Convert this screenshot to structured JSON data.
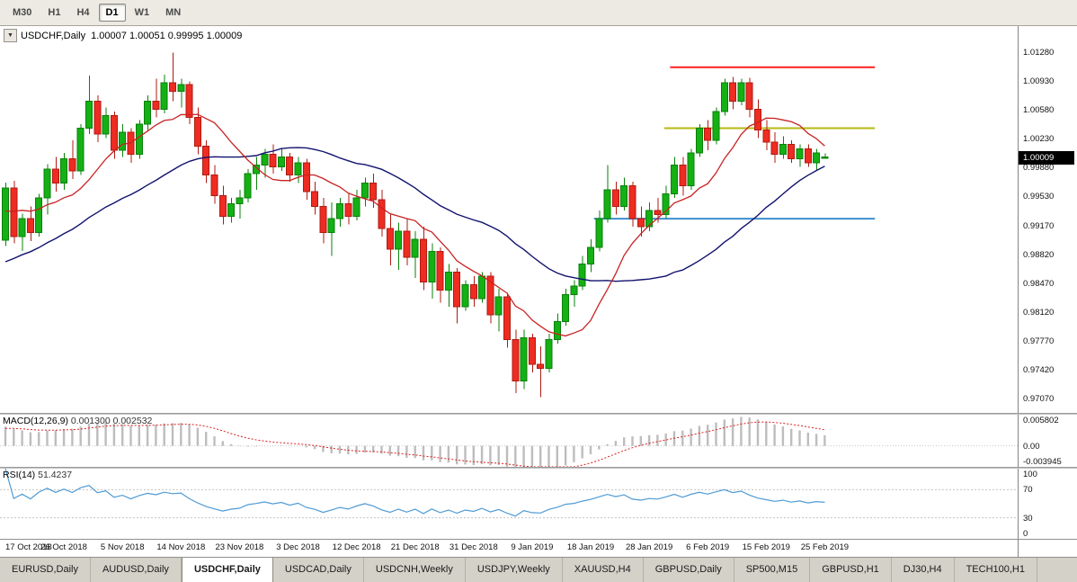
{
  "toolbar": {
    "timeframes": [
      {
        "label": "M30",
        "active": false
      },
      {
        "label": "H1",
        "active": false
      },
      {
        "label": "H4",
        "active": false
      },
      {
        "label": "D1",
        "active": true
      },
      {
        "label": "W1",
        "active": false
      },
      {
        "label": "MN",
        "active": false
      }
    ]
  },
  "chart_title": {
    "symbol": "USDCHF,Daily",
    "ohlc": "1.00007 1.00051 0.99995 1.00009"
  },
  "chart_data": {
    "type": "candlestick",
    "symbol": "USDCHF",
    "timeframe": "Daily",
    "title": "USDCHF,Daily",
    "ohlc_current": {
      "open": "1.00007",
      "high": "1.00051",
      "low": "0.99995",
      "close": "1.00009"
    },
    "current_price": "1.00009",
    "price_range": {
      "max": 1.016,
      "min": 0.969
    },
    "price_axis_labels": [
      "1.01280",
      "1.00930",
      "1.00580",
      "1.00230",
      "0.99880",
      "0.99530",
      "0.99170",
      "0.98820",
      "0.98470",
      "0.98120",
      "0.97770",
      "0.97420",
      "0.97070"
    ],
    "x_labels": [
      "17 Oct 2018",
      "26 Oct 2018",
      "5 Nov 2018",
      "14 Nov 2018",
      "23 Nov 2018",
      "3 Dec 2018",
      "12 Dec 2018",
      "21 Dec 2018",
      "31 Dec 2018",
      "9 Jan 2019",
      "18 Jan 2019",
      "28 Jan 2019",
      "6 Feb 2019",
      "15 Feb 2019",
      "25 Feb 2019"
    ],
    "colors": {
      "bull": "#14b014",
      "bull_border": "#0a800a",
      "bear": "#ee2c21",
      "bear_border": "#b01a12",
      "background": "#ffffff"
    },
    "candles": [
      [
        0.99,
        0.997,
        0.9893,
        0.9963
      ],
      [
        0.9963,
        0.9972,
        0.9896,
        0.9904
      ],
      [
        0.9904,
        0.9932,
        0.9887,
        0.9926
      ],
      [
        0.9926,
        0.9941,
        0.9899,
        0.9909
      ],
      [
        0.9909,
        0.9956,
        0.9904,
        0.9951
      ],
      [
        0.9951,
        0.9992,
        0.9931,
        0.9986
      ],
      [
        0.9986,
        1.0001,
        0.9959,
        0.9969
      ],
      [
        0.9969,
        1.0006,
        0.9961,
        0.9999
      ],
      [
        0.9999,
        1.0021,
        0.9974,
        0.9984
      ],
      [
        0.9984,
        1.0041,
        0.9979,
        1.0036
      ],
      [
        1.0036,
        1.01,
        1.0029,
        1.0069
      ],
      [
        1.0069,
        1.0076,
        1.0019,
        1.0029
      ],
      [
        1.0029,
        1.0061,
        1.0024,
        1.0051
      ],
      [
        1.0051,
        1.0056,
        0.9999,
        1.0009
      ],
      [
        1.0009,
        1.0041,
        1.0001,
        1.0031
      ],
      [
        1.0031,
        1.0036,
        0.9994,
        1.0004
      ],
      [
        1.0004,
        1.0046,
        0.9999,
        1.0041
      ],
      [
        1.0041,
        1.0076,
        1.0034,
        1.0069
      ],
      [
        1.0069,
        1.0096,
        1.0049,
        1.0059
      ],
      [
        1.0059,
        1.0101,
        1.0054,
        1.0091
      ],
      [
        1.0091,
        1.0128,
        1.0069,
        1.0081
      ],
      [
        1.0081,
        1.0096,
        1.0061,
        1.0089
      ],
      [
        1.0089,
        1.0093,
        1.0041,
        1.0049
      ],
      [
        1.0049,
        1.0061,
        1.0004,
        1.0014
      ],
      [
        1.0014,
        1.0021,
        0.9969,
        0.9979
      ],
      [
        0.9979,
        0.9991,
        0.9944,
        0.9954
      ],
      [
        0.9954,
        0.9966,
        0.9919,
        0.9929
      ],
      [
        0.9929,
        0.9951,
        0.9921,
        0.9944
      ],
      [
        0.9944,
        0.9961,
        0.9926,
        0.9951
      ],
      [
        0.9951,
        0.9986,
        0.9946,
        0.9981
      ],
      [
        0.9981,
        1.0001,
        0.9961,
        0.9991
      ],
      [
        0.9991,
        1.0011,
        0.9976,
        1.0004
      ],
      [
        1.0004,
        1.0016,
        0.9981,
        0.9989
      ],
      [
        0.9989,
        1.0011,
        0.9984,
        1.0001
      ],
      [
        1.0001,
        1.0006,
        0.9971,
        0.9979
      ],
      [
        0.9979,
        1.0001,
        0.9969,
        0.9994
      ],
      [
        0.9994,
        0.9999,
        0.9949,
        0.9959
      ],
      [
        0.9959,
        0.9971,
        0.9931,
        0.9941
      ],
      [
        0.9941,
        0.9951,
        0.9896,
        0.9909
      ],
      [
        0.9909,
        0.9946,
        0.9881,
        0.9926
      ],
      [
        0.9926,
        0.9951,
        0.9916,
        0.9944
      ],
      [
        0.9944,
        0.9956,
        0.9919,
        0.9929
      ],
      [
        0.9929,
        0.9961,
        0.9924,
        0.9951
      ],
      [
        0.9951,
        0.9976,
        0.9941,
        0.9969
      ],
      [
        0.9969,
        0.9981,
        0.9939,
        0.9949
      ],
      [
        0.9949,
        0.9961,
        0.9904,
        0.9914
      ],
      [
        0.9914,
        0.9931,
        0.9869,
        0.9889
      ],
      [
        0.9889,
        0.9921,
        0.9864,
        0.9911
      ],
      [
        0.9911,
        0.9926,
        0.9869,
        0.9879
      ],
      [
        0.9879,
        0.9911,
        0.9854,
        0.9901
      ],
      [
        0.9901,
        0.9916,
        0.9839,
        0.9849
      ],
      [
        0.9849,
        0.9896,
        0.9829,
        0.9886
      ],
      [
        0.9886,
        0.9891,
        0.9824,
        0.9839
      ],
      [
        0.9839,
        0.9871,
        0.9819,
        0.9861
      ],
      [
        0.9861,
        0.9866,
        0.9799,
        0.9819
      ],
      [
        0.9819,
        0.9851,
        0.9814,
        0.9846
      ],
      [
        0.9846,
        0.9856,
        0.9819,
        0.9829
      ],
      [
        0.9829,
        0.9861,
        0.9824,
        0.9856
      ],
      [
        0.9856,
        0.9861,
        0.9799,
        0.9809
      ],
      [
        0.9809,
        0.9841,
        0.9789,
        0.9831
      ],
      [
        0.9831,
        0.9836,
        0.9769,
        0.9779
      ],
      [
        0.9779,
        0.9791,
        0.9714,
        0.9729
      ],
      [
        0.9729,
        0.9791,
        0.9719,
        0.9781
      ],
      [
        0.9781,
        0.9786,
        0.9739,
        0.9749
      ],
      [
        0.9749,
        0.9771,
        0.9709,
        0.9744
      ],
      [
        0.9744,
        0.9786,
        0.9739,
        0.9779
      ],
      [
        0.9779,
        0.9811,
        0.9774,
        0.9801
      ],
      [
        0.9801,
        0.9841,
        0.9796,
        0.9834
      ],
      [
        0.9834,
        0.9851,
        0.9819,
        0.9844
      ],
      [
        0.9844,
        0.9881,
        0.9839,
        0.9871
      ],
      [
        0.9871,
        0.9901,
        0.9861,
        0.9891
      ],
      [
        0.9891,
        0.9936,
        0.9886,
        0.9926
      ],
      [
        0.9926,
        0.9991,
        0.9921,
        0.9961
      ],
      [
        0.9961,
        0.9971,
        0.9931,
        0.9941
      ],
      [
        0.9941,
        0.9976,
        0.9936,
        0.9966
      ],
      [
        0.9966,
        0.9971,
        0.9916,
        0.9926
      ],
      [
        0.9926,
        0.9941,
        0.9904,
        0.9916
      ],
      [
        0.9916,
        0.9946,
        0.9911,
        0.9936
      ],
      [
        0.9936,
        0.9951,
        0.9921,
        0.9931
      ],
      [
        0.9931,
        0.9966,
        0.9926,
        0.9956
      ],
      [
        0.9956,
        1.0001,
        0.9951,
        0.9991
      ],
      [
        0.9991,
        1.0001,
        0.9954,
        0.9966
      ],
      [
        0.9966,
        1.0011,
        0.9961,
        1.0006
      ],
      [
        1.0006,
        1.0041,
        1.0001,
        1.0036
      ],
      [
        1.0036,
        1.0046,
        1.0009,
        1.0021
      ],
      [
        1.0021,
        1.0061,
        1.0016,
        1.0056
      ],
      [
        1.0056,
        1.0096,
        1.0051,
        1.0091
      ],
      [
        1.0091,
        1.0098,
        1.0059,
        1.0069
      ],
      [
        1.0069,
        1.0096,
        1.0064,
        1.0091
      ],
      [
        1.0091,
        1.0097,
        1.0049,
        1.0059
      ],
      [
        1.0059,
        1.0071,
        1.0024,
        1.0034
      ],
      [
        1.0034,
        1.0046,
        1.0009,
        1.0019
      ],
      [
        1.0019,
        1.0031,
        0.9994,
        1.0004
      ],
      [
        1.0004,
        1.0026,
        0.9999,
        1.0016
      ],
      [
        1.0016,
        1.0021,
        0.9994,
        0.9999
      ],
      [
        0.9999,
        1.0016,
        0.9989,
        1.0011
      ],
      [
        1.0011,
        1.0016,
        0.9989,
        0.9994
      ],
      [
        0.9994,
        1.0011,
        0.9984,
        1.0006
      ],
      [
        1.00007,
        1.00051,
        0.99995,
        1.00009
      ]
    ],
    "overlays": {
      "ma_fast": {
        "period": 10,
        "color": "#c92222"
      },
      "ma_slow": {
        "period": 30,
        "color": "#12126e"
      },
      "hlines": [
        {
          "price": 1.011,
          "color": "#ff2020",
          "from_idx": 79.5,
          "to_idx": 104
        },
        {
          "price": 1.0036,
          "color": "#b4ba12",
          "from_idx": 78.8,
          "to_idx": 104
        },
        {
          "price": 0.9926,
          "color": "#3e8ed0",
          "from_idx": 70.4,
          "to_idx": 104
        }
      ]
    },
    "indicators": {
      "macd": {
        "label": "MACD(12,26,9)",
        "values": "0.001300 0.002532",
        "axis_labels": [
          "0.005802",
          "0.00",
          "-0.003945"
        ],
        "range": {
          "max": 0.0058,
          "min": -0.0039
        },
        "histogram_color": "#bdbdbd",
        "signal_color": "#dd2020"
      },
      "rsi": {
        "label": "RSI(14)",
        "value": "51.4237",
        "levels": [
          70,
          30
        ],
        "axis_labels": [
          "100",
          "70",
          "30",
          "0"
        ],
        "color": "#4f9bd5"
      }
    }
  },
  "tabs": [
    {
      "label": "EURUSD,Daily",
      "active": false
    },
    {
      "label": "AUDUSD,Daily",
      "active": false
    },
    {
      "label": "USDCHF,Daily",
      "active": true
    },
    {
      "label": "USDCAD,Daily",
      "active": false
    },
    {
      "label": "USDCNH,Weekly",
      "active": false
    },
    {
      "label": "USDJPY,Weekly",
      "active": false
    },
    {
      "label": "XAUUSD,H4",
      "active": false
    },
    {
      "label": "GBPUSD,Daily",
      "active": false
    },
    {
      "label": "SP500,M15",
      "active": false
    },
    {
      "label": "GBPUSD,H1",
      "active": false
    },
    {
      "label": "DJ30,H4",
      "active": false
    },
    {
      "label": "TECH100,H1",
      "active": false
    }
  ]
}
